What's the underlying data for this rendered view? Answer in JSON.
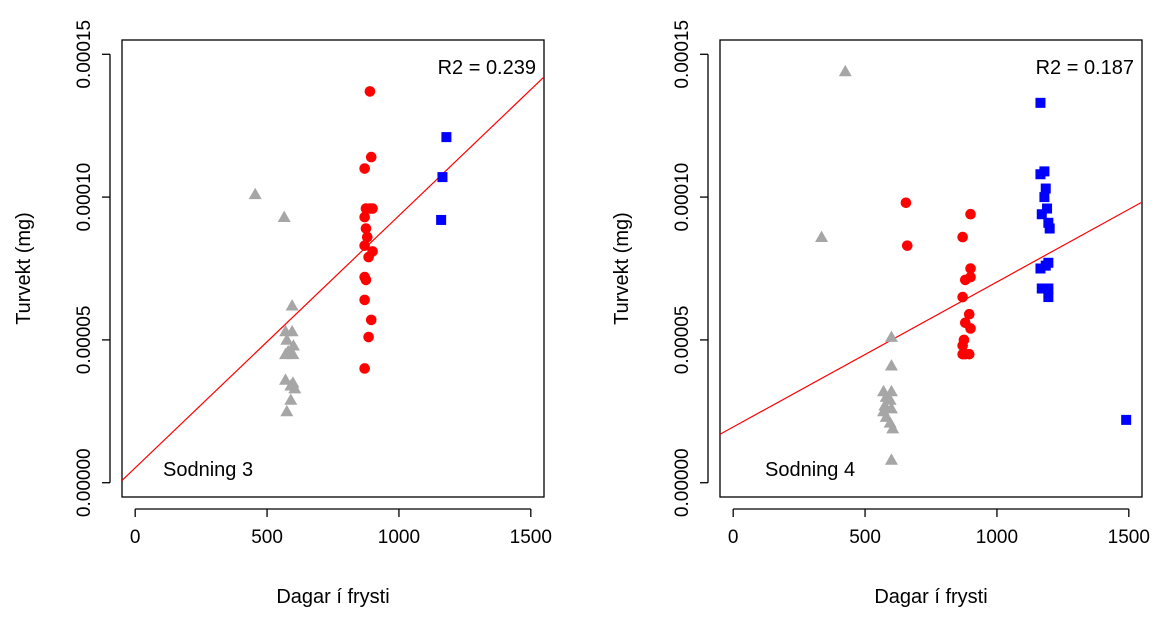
{
  "chart_data": [
    {
      "type": "scatter",
      "title": "",
      "xlabel": "Dagar í frysti",
      "ylabel": "Turvekt (mg)",
      "xlim": [
        -50,
        1550
      ],
      "ylim": [
        -5e-06,
        0.000155
      ],
      "xticks": [
        0,
        500,
        1000,
        1500
      ],
      "yticks": [
        0,
        5e-05,
        0.0001,
        0.00015
      ],
      "xtick_labels": [
        "0",
        "500",
        "1000",
        "1500"
      ],
      "ytick_labels": [
        "0.00000",
        "0.00005",
        "0.00010",
        "0.00015"
      ],
      "annotations": {
        "r2": "R2 = 0.239",
        "label": "Sodning 3"
      },
      "regression": {
        "intercept": 5.2e-06,
        "slope": 8.83e-08,
        "color": "#ff0000"
      },
      "series": [
        {
          "marker": "triangle",
          "color": "#a6a6a6",
          "points": [
            [
              455,
              0.000101
            ],
            [
              565,
              9.3e-05
            ],
            [
              595,
              6.2e-05
            ],
            [
              570,
              5.3e-05
            ],
            [
              595,
              5.3e-05
            ],
            [
              575,
              5e-05
            ],
            [
              600,
              4.8e-05
            ],
            [
              580,
              4.6e-05
            ],
            [
              598,
              4.5e-05
            ],
            [
              570,
              4.5e-05
            ],
            [
              570,
              3.6e-05
            ],
            [
              598,
              3.5e-05
            ],
            [
              590,
              3.4e-05
            ],
            [
              605,
              3.3e-05
            ],
            [
              590,
              2.9e-05
            ],
            [
              575,
              2.5e-05
            ]
          ]
        },
        {
          "marker": "circle",
          "color": "#ff0000",
          "points": [
            [
              890,
              0.000137
            ],
            [
              895,
              0.000114
            ],
            [
              870,
              0.00011
            ],
            [
              875,
              9.6e-05
            ],
            [
              890,
              9.6e-05
            ],
            [
              900,
              9.6e-05
            ],
            [
              870,
              9.3e-05
            ],
            [
              875,
              8.9e-05
            ],
            [
              880,
              8.6e-05
            ],
            [
              870,
              8.3e-05
            ],
            [
              900,
              8.1e-05
            ],
            [
              885,
              7.9e-05
            ],
            [
              870,
              7.2e-05
            ],
            [
              875,
              7.1e-05
            ],
            [
              870,
              6.4e-05
            ],
            [
              895,
              5.7e-05
            ],
            [
              885,
              5.1e-05
            ],
            [
              870,
              4e-05
            ]
          ]
        },
        {
          "marker": "square",
          "color": "#0000ff",
          "points": [
            [
              1180,
              0.000121
            ],
            [
              1165,
              0.000107
            ],
            [
              1160,
              9.2e-05
            ]
          ]
        }
      ]
    },
    {
      "type": "scatter",
      "title": "",
      "xlabel": "Dagar í frysti",
      "ylabel": "Turvekt (mg)",
      "xlim": [
        -50,
        1550
      ],
      "ylim": [
        -5e-06,
        0.000155
      ],
      "xticks": [
        0,
        500,
        1000,
        1500
      ],
      "yticks": [
        0,
        5e-05,
        0.0001,
        0.00015
      ],
      "xtick_labels": [
        "0",
        "500",
        "1000",
        "1500"
      ],
      "ytick_labels": [
        "0.00000",
        "0.00005",
        "0.00010",
        "0.00015"
      ],
      "annotations": {
        "r2": "R2 = 0.187",
        "label": "Sodning 4"
      },
      "regression": {
        "intercept": 1.95e-05,
        "slope": 5.08e-08,
        "color": "#ff0000"
      },
      "series": [
        {
          "marker": "triangle",
          "color": "#a6a6a6",
          "points": [
            [
              425,
              0.000144
            ],
            [
              335,
              8.6e-05
            ],
            [
              600,
              5.1e-05
            ],
            [
              600,
              4.1e-05
            ],
            [
              570,
              3.2e-05
            ],
            [
              600,
              3.2e-05
            ],
            [
              580,
              3e-05
            ],
            [
              595,
              2.9e-05
            ],
            [
              575,
              2.7e-05
            ],
            [
              600,
              2.6e-05
            ],
            [
              570,
              2.5e-05
            ],
            [
              580,
              2.3e-05
            ],
            [
              595,
              2.1e-05
            ],
            [
              605,
              1.9e-05
            ],
            [
              600,
              8e-06
            ]
          ]
        },
        {
          "marker": "circle",
          "color": "#ff0000",
          "points": [
            [
              655,
              9.8e-05
            ],
            [
              660,
              8.3e-05
            ],
            [
              900,
              9.4e-05
            ],
            [
              870,
              8.6e-05
            ],
            [
              900,
              7.5e-05
            ],
            [
              880,
              7.1e-05
            ],
            [
              900,
              7.2e-05
            ],
            [
              870,
              6.5e-05
            ],
            [
              895,
              5.9e-05
            ],
            [
              880,
              5.6e-05
            ],
            [
              900,
              5.4e-05
            ],
            [
              875,
              5e-05
            ],
            [
              870,
              4.8e-05
            ],
            [
              880,
              4.5e-05
            ],
            [
              895,
              4.5e-05
            ],
            [
              870,
              4.5e-05
            ]
          ]
        },
        {
          "marker": "square",
          "color": "#0000ff",
          "points": [
            [
              1165,
              0.000133
            ],
            [
              1180,
              0.000109
            ],
            [
              1165,
              0.000108
            ],
            [
              1185,
              0.000103
            ],
            [
              1180,
              0.0001
            ],
            [
              1190,
              9.6e-05
            ],
            [
              1170,
              9.4e-05
            ],
            [
              1195,
              9.1e-05
            ],
            [
              1200,
              8.9e-05
            ],
            [
              1195,
              7.7e-05
            ],
            [
              1185,
              7.6e-05
            ],
            [
              1165,
              7.5e-05
            ],
            [
              1170,
              6.8e-05
            ],
            [
              1195,
              6.8e-05
            ],
            [
              1195,
              6.5e-05
            ],
            [
              1490,
              2.2e-05
            ]
          ]
        }
      ]
    }
  ]
}
